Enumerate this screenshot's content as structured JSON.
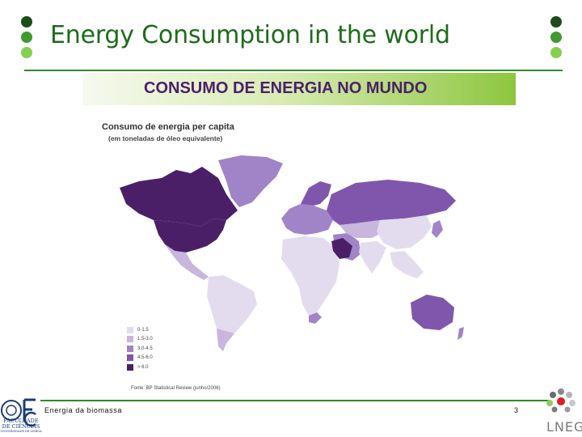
{
  "slide": {
    "title": "Energy Consumption in the world",
    "footer_text": "Energia da biomassa",
    "page_number": "3"
  },
  "image": {
    "banner_title": "CONSUMO DE ENERGIA NO MUNDO",
    "legend_title": "Consumo de energia per capita",
    "legend_subtitle": "(em toneladas de óleo equivalente)",
    "legend": [
      {
        "label": "0-1.5",
        "color": "#e3dcee"
      },
      {
        "label": "1.5-3.0",
        "color": "#c8b6dd"
      },
      {
        "label": "3.0-4.5",
        "color": "#a184c7"
      },
      {
        "label": "4.5-6.0",
        "color": "#8056ad"
      },
      {
        "label": "> 6.0",
        "color": "#4b1f68"
      }
    ],
    "source": "Fonte: BP Statistical Review (junho/2006)"
  },
  "logos": {
    "left_text": "FACULDADE DE CIÊNCIAS",
    "left_small": "UNIVERSIDADE DE LISBOA",
    "right_text": "LNEG"
  },
  "colors": {
    "title_green": "#1e6b1a",
    "rule_green": "#2f8a27",
    "dot_dark": "#1d4d1a",
    "dot_mid": "#3f9a2f",
    "dot_light": "#86d04f"
  }
}
